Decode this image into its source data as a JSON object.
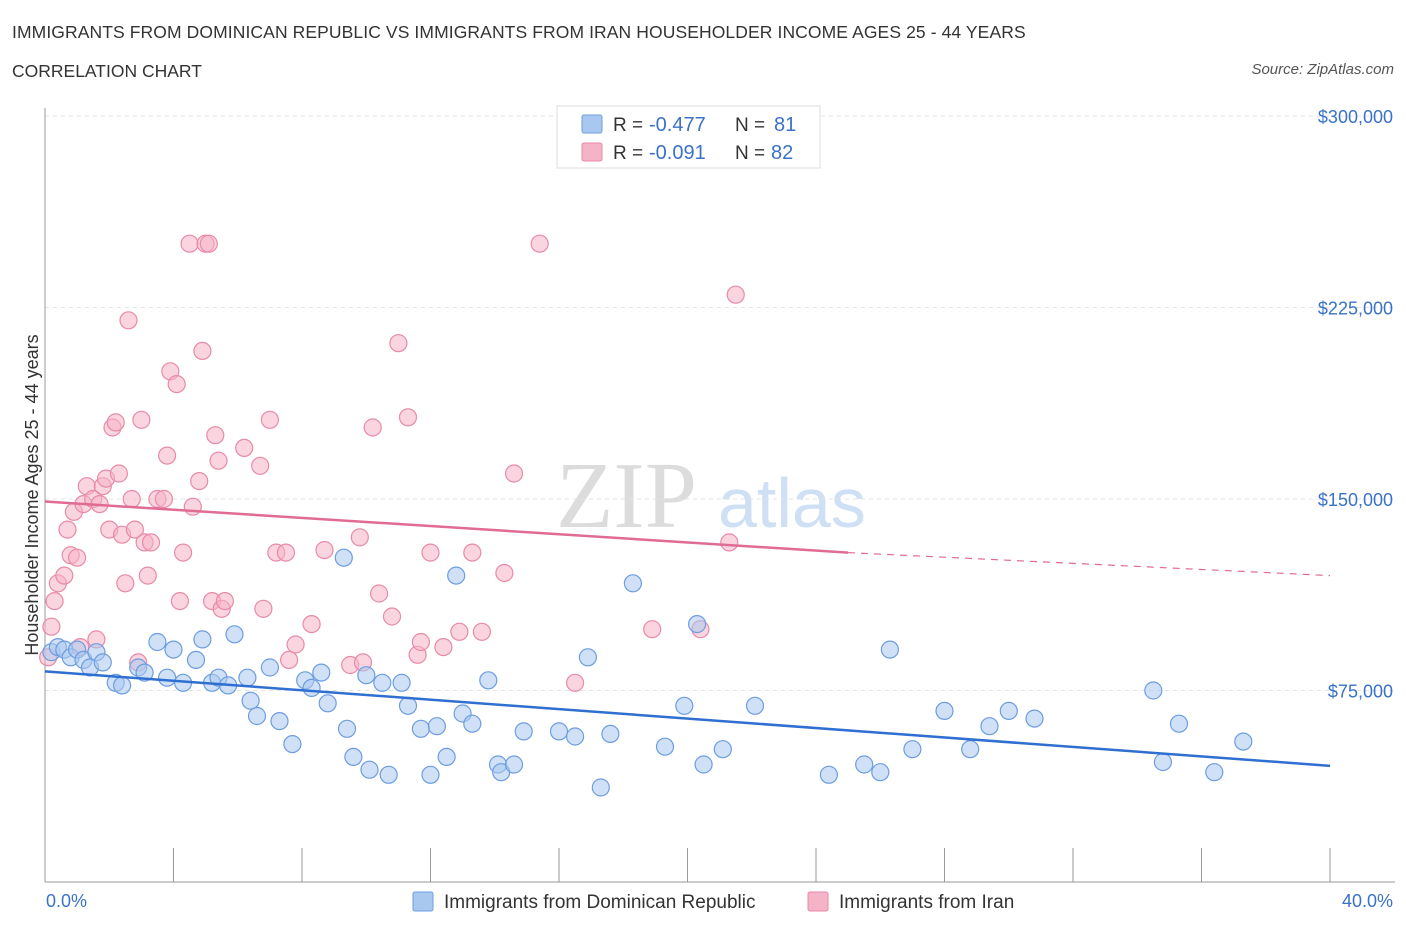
{
  "header": {
    "title": "IMMIGRANTS FROM DOMINICAN REPUBLIC VS IMMIGRANTS FROM IRAN HOUSEHOLDER INCOME AGES 25 - 44 YEARS",
    "subtitle": "CORRELATION CHART",
    "source": "Source: ZipAtlas.com"
  },
  "watermark": {
    "zip": "ZIP",
    "atlas": "atlas"
  },
  "legend_top": {
    "rows": [
      {
        "r_label": "R =",
        "r_value": "-0.477",
        "n_label": "N =",
        "n_value": "81",
        "color": "#a9c8f0"
      },
      {
        "r_label": "R =",
        "r_value": "-0.091",
        "n_label": "N =",
        "n_value": "82",
        "color": "#f5b3c7"
      }
    ]
  },
  "legend_bottom": {
    "items": [
      {
        "label": "Immigrants from Dominican Republic",
        "color": "#a9c8f0"
      },
      {
        "label": "Immigrants from Iran",
        "color": "#f5b3c7"
      }
    ]
  },
  "colors": {
    "blue_fill": "#a9c8f0",
    "blue_stroke": "#6d9de0",
    "blue_line": "#2f6fd1",
    "pink_fill": "#f5b3c7",
    "pink_stroke": "#e88aa8",
    "pink_line": "#e06b93"
  },
  "chart_data": {
    "type": "scatter",
    "title": "IMMIGRANTS FROM DOMINICAN REPUBLIC VS IMMIGRANTS FROM IRAN HOUSEHOLDER INCOME AGES 25 - 44 YEARS",
    "ylabel": "Householder Income Ages 25 - 44 years",
    "xlim": [
      0,
      40
    ],
    "ylim": [
      0,
      300000
    ],
    "x_tick_labels": [
      "0.0%",
      "40.0%"
    ],
    "y_ticks": [
      75000,
      150000,
      225000,
      300000
    ],
    "y_tick_labels": [
      "$75,000",
      "$150,000",
      "$225,000",
      "$300,000"
    ],
    "grid": true,
    "legend_placement": "top-center",
    "series": [
      {
        "name": "Immigrants from Dominican Republic",
        "trend": {
          "x0": 0,
          "y0": 82500,
          "x1": 40,
          "y1": 45500,
          "dashed_from": null
        },
        "points": [
          [
            0.2,
            90000
          ],
          [
            0.4,
            92000
          ],
          [
            0.6,
            91000
          ],
          [
            0.8,
            88000
          ],
          [
            1.0,
            91000
          ],
          [
            1.2,
            87000
          ],
          [
            1.4,
            84000
          ],
          [
            1.6,
            90000
          ],
          [
            1.8,
            86000
          ],
          [
            2.2,
            78000
          ],
          [
            2.4,
            77000
          ],
          [
            2.9,
            84000
          ],
          [
            3.1,
            82000
          ],
          [
            3.5,
            94000
          ],
          [
            3.8,
            80000
          ],
          [
            4.0,
            91000
          ],
          [
            4.3,
            78000
          ],
          [
            4.7,
            87000
          ],
          [
            4.9,
            95000
          ],
          [
            5.2,
            78000
          ],
          [
            5.4,
            80000
          ],
          [
            5.7,
            77000
          ],
          [
            5.9,
            97000
          ],
          [
            6.3,
            80000
          ],
          [
            6.4,
            71000
          ],
          [
            6.6,
            65000
          ],
          [
            7.0,
            84000
          ],
          [
            7.3,
            63000
          ],
          [
            7.7,
            54000
          ],
          [
            8.1,
            79000
          ],
          [
            8.3,
            76000
          ],
          [
            8.6,
            82000
          ],
          [
            8.8,
            70000
          ],
          [
            9.3,
            127000
          ],
          [
            9.4,
            60000
          ],
          [
            9.6,
            49000
          ],
          [
            10.0,
            81000
          ],
          [
            10.1,
            44000
          ],
          [
            10.5,
            78000
          ],
          [
            10.7,
            42000
          ],
          [
            11.1,
            78000
          ],
          [
            11.3,
            69000
          ],
          [
            11.7,
            60000
          ],
          [
            12.0,
            42000
          ],
          [
            12.2,
            61000
          ],
          [
            12.5,
            49000
          ],
          [
            12.8,
            120000
          ],
          [
            13.0,
            66000
          ],
          [
            13.3,
            62000
          ],
          [
            13.8,
            79000
          ],
          [
            14.1,
            46000
          ],
          [
            14.2,
            43000
          ],
          [
            14.6,
            46000
          ],
          [
            14.9,
            59000
          ],
          [
            16.0,
            59000
          ],
          [
            16.5,
            57000
          ],
          [
            16.9,
            88000
          ],
          [
            17.3,
            37000
          ],
          [
            17.6,
            58000
          ],
          [
            18.3,
            117000
          ],
          [
            19.3,
            53000
          ],
          [
            19.9,
            69000
          ],
          [
            20.5,
            46000
          ],
          [
            21.1,
            52000
          ],
          [
            22.1,
            69000
          ],
          [
            24.4,
            42000
          ],
          [
            25.5,
            46000
          ],
          [
            26.0,
            43000
          ],
          [
            26.3,
            91000
          ],
          [
            27.0,
            52000
          ],
          [
            28.0,
            67000
          ],
          [
            28.8,
            52000
          ],
          [
            29.4,
            61000
          ],
          [
            30.0,
            67000
          ],
          [
            30.8,
            64000
          ],
          [
            34.5,
            75000
          ],
          [
            34.8,
            47000
          ],
          [
            35.3,
            62000
          ],
          [
            36.4,
            43000
          ],
          [
            37.3,
            55000
          ],
          [
            20.3,
            101000
          ]
        ]
      },
      {
        "name": "Immigrants from Iran",
        "trend": {
          "x0": 0,
          "y0": 149000,
          "x1": 25,
          "y1": 129000,
          "dashed_from": 25,
          "x2": 40,
          "y2": 120000
        },
        "points": [
          [
            0.1,
            88000
          ],
          [
            0.2,
            100000
          ],
          [
            0.3,
            110000
          ],
          [
            0.4,
            117000
          ],
          [
            0.6,
            120000
          ],
          [
            0.7,
            138000
          ],
          [
            0.8,
            128000
          ],
          [
            0.9,
            145000
          ],
          [
            1.0,
            127000
          ],
          [
            1.2,
            148000
          ],
          [
            1.3,
            155000
          ],
          [
            1.5,
            150000
          ],
          [
            1.6,
            95000
          ],
          [
            1.7,
            148000
          ],
          [
            1.8,
            155000
          ],
          [
            1.9,
            158000
          ],
          [
            2.0,
            138000
          ],
          [
            2.1,
            178000
          ],
          [
            2.2,
            180000
          ],
          [
            2.3,
            160000
          ],
          [
            2.4,
            136000
          ],
          [
            2.5,
            117000
          ],
          [
            2.6,
            220000
          ],
          [
            2.7,
            150000
          ],
          [
            2.8,
            138000
          ],
          [
            2.9,
            86000
          ],
          [
            3.0,
            181000
          ],
          [
            3.1,
            133000
          ],
          [
            3.3,
            133000
          ],
          [
            3.5,
            150000
          ],
          [
            3.7,
            150000
          ],
          [
            3.8,
            167000
          ],
          [
            3.9,
            200000
          ],
          [
            4.1,
            195000
          ],
          [
            4.2,
            110000
          ],
          [
            4.3,
            129000
          ],
          [
            4.5,
            250000
          ],
          [
            4.6,
            147000
          ],
          [
            4.8,
            157000
          ],
          [
            4.9,
            208000
          ],
          [
            5.0,
            250000
          ],
          [
            5.1,
            250000
          ],
          [
            5.2,
            110000
          ],
          [
            5.3,
            175000
          ],
          [
            5.4,
            165000
          ],
          [
            5.5,
            107000
          ],
          [
            5.6,
            110000
          ],
          [
            6.2,
            170000
          ],
          [
            6.7,
            163000
          ],
          [
            6.8,
            107000
          ],
          [
            7.0,
            181000
          ],
          [
            7.2,
            129000
          ],
          [
            7.5,
            129000
          ],
          [
            7.6,
            87000
          ],
          [
            7.8,
            93000
          ],
          [
            8.3,
            101000
          ],
          [
            8.7,
            130000
          ],
          [
            9.5,
            85000
          ],
          [
            9.8,
            135000
          ],
          [
            10.2,
            178000
          ],
          [
            10.4,
            113000
          ],
          [
            10.8,
            104000
          ],
          [
            11.0,
            211000
          ],
          [
            11.3,
            182000
          ],
          [
            11.6,
            89000
          ],
          [
            11.7,
            94000
          ],
          [
            12.0,
            129000
          ],
          [
            12.4,
            92000
          ],
          [
            12.9,
            98000
          ],
          [
            13.3,
            129000
          ],
          [
            13.6,
            98000
          ],
          [
            14.3,
            121000
          ],
          [
            14.6,
            160000
          ],
          [
            15.4,
            250000
          ],
          [
            16.5,
            78000
          ],
          [
            18.9,
            99000
          ],
          [
            20.4,
            99000
          ],
          [
            21.3,
            133000
          ],
          [
            21.5,
            230000
          ],
          [
            9.9,
            86000
          ],
          [
            3.2,
            120000
          ],
          [
            1.1,
            92000
          ]
        ]
      }
    ]
  }
}
